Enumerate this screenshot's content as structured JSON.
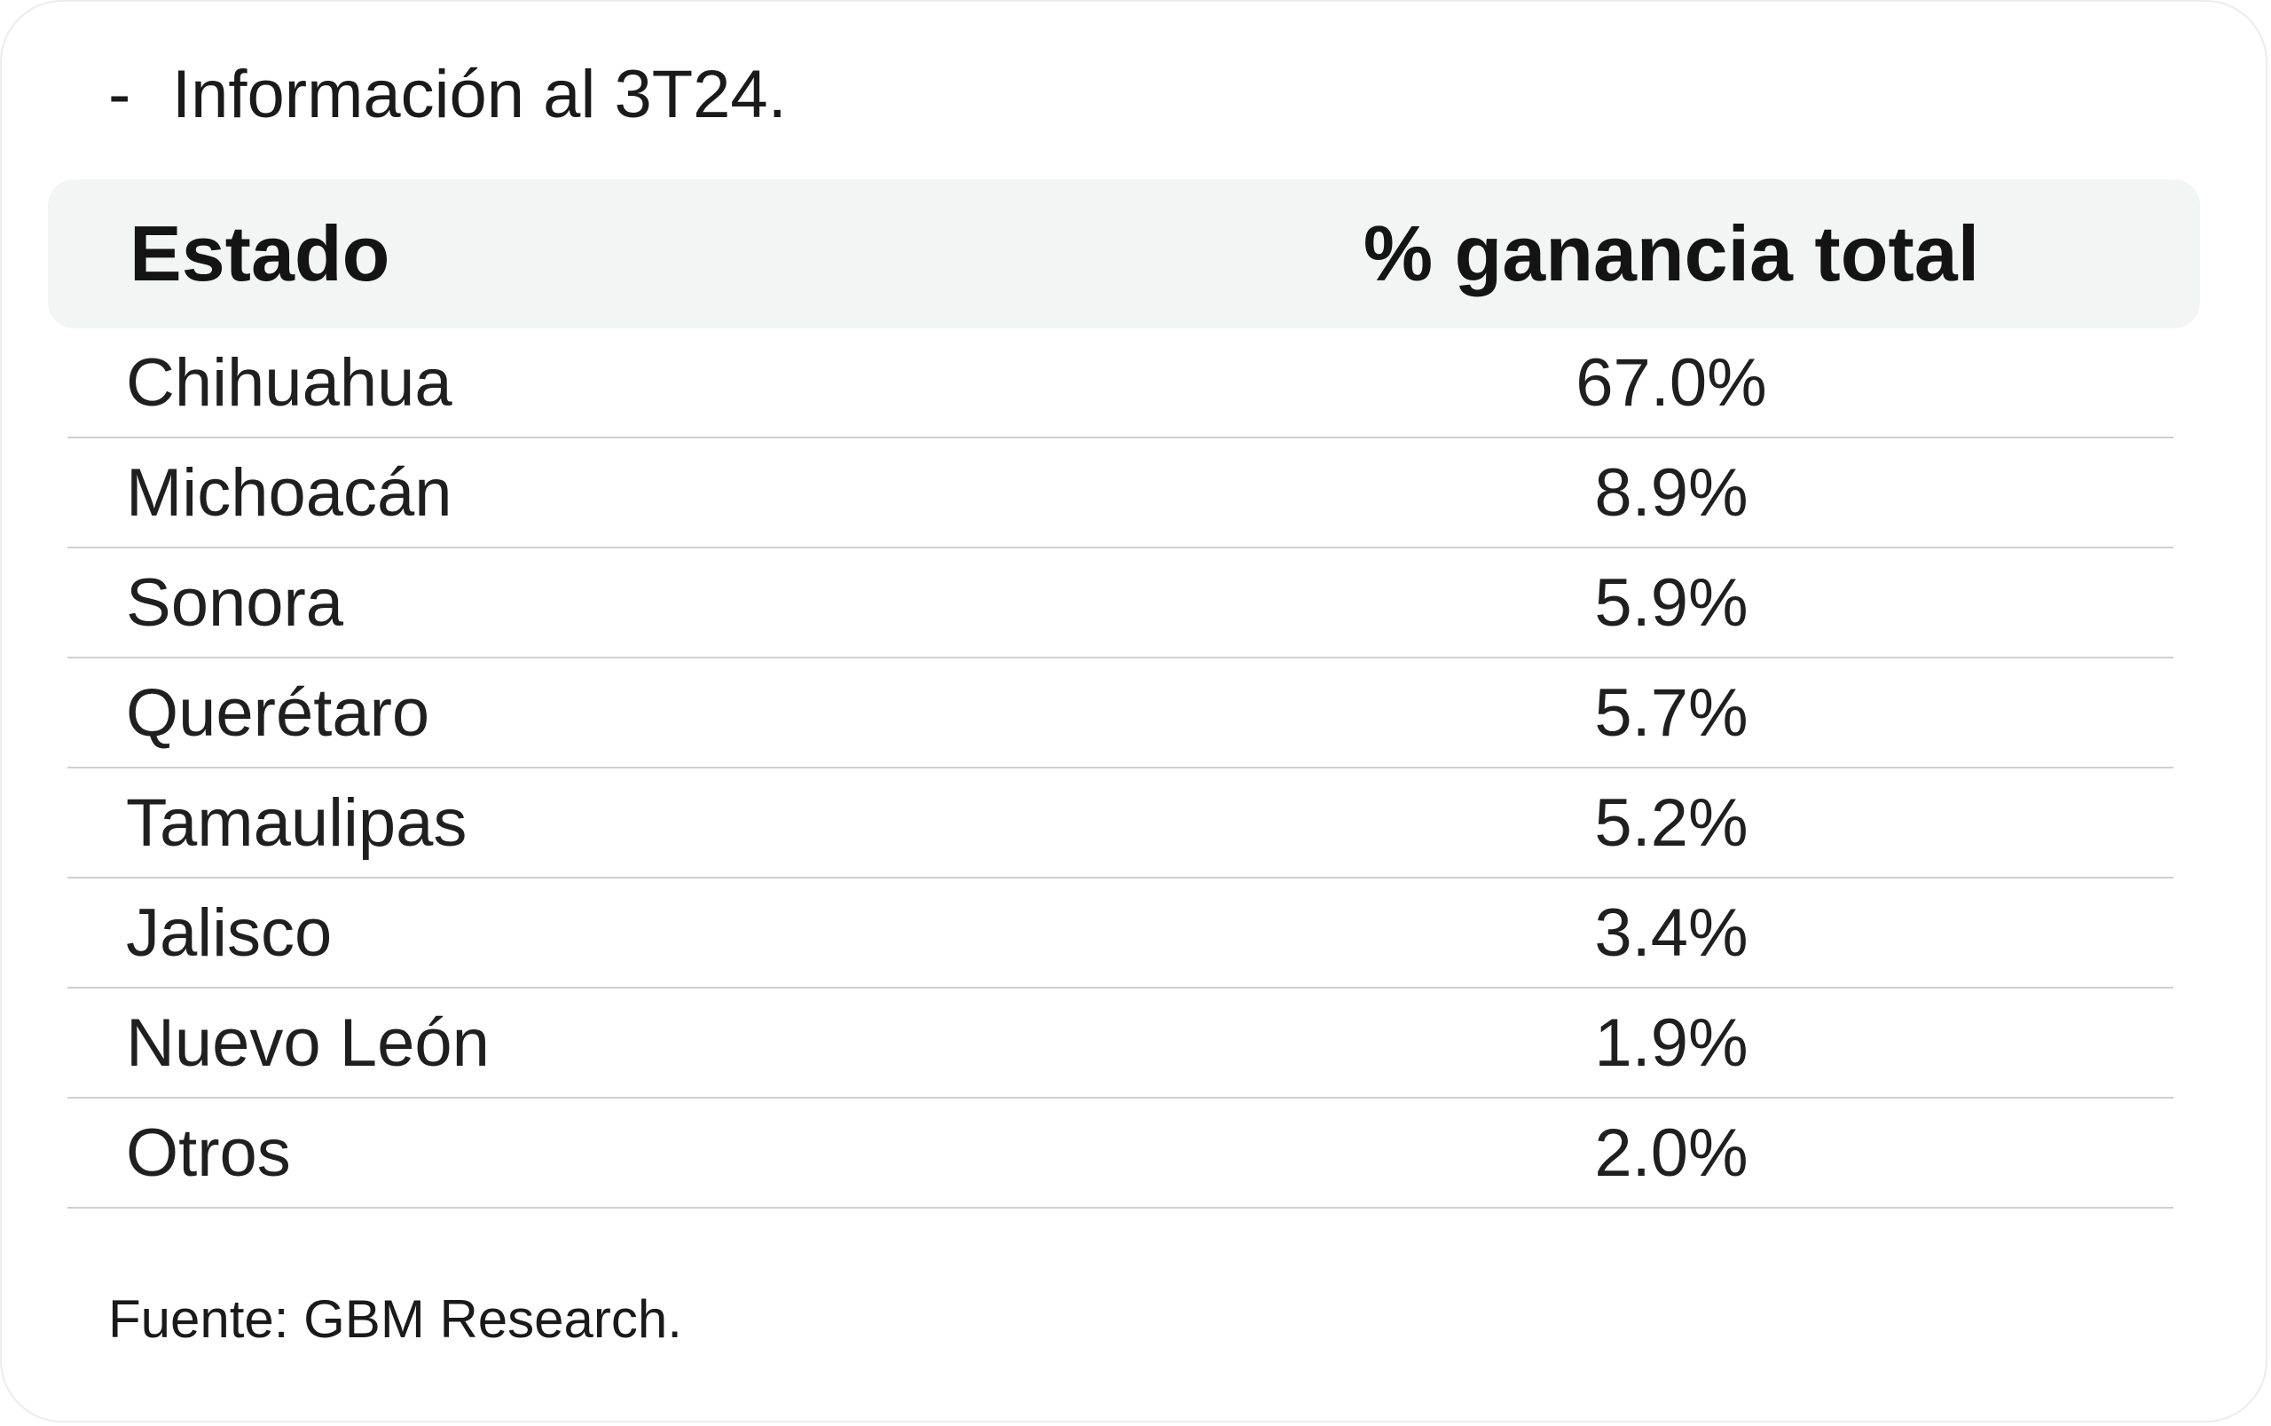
{
  "note": {
    "dash": "-",
    "text": "Información al 3T24."
  },
  "table": {
    "headers": {
      "state": "Estado",
      "pct": "% ganancia total"
    },
    "rows": [
      {
        "state": "Chihuahua",
        "pct": "67.0%"
      },
      {
        "state": "Michoacán",
        "pct": "8.9%"
      },
      {
        "state": "Sonora",
        "pct": "5.9%"
      },
      {
        "state": "Querétaro",
        "pct": "5.7%"
      },
      {
        "state": "Tamaulipas",
        "pct": "5.2%"
      },
      {
        "state": "Jalisco",
        "pct": "3.4%"
      },
      {
        "state": "Nuevo León",
        "pct": "1.9%"
      },
      {
        "state": "Otros",
        "pct": "2.0%"
      }
    ]
  },
  "source": "Fuente: GBM Research.",
  "colors": {
    "header_bg": "#f3f4f4",
    "divider": "#cfcfcf",
    "text": "#1f1f1f"
  }
}
